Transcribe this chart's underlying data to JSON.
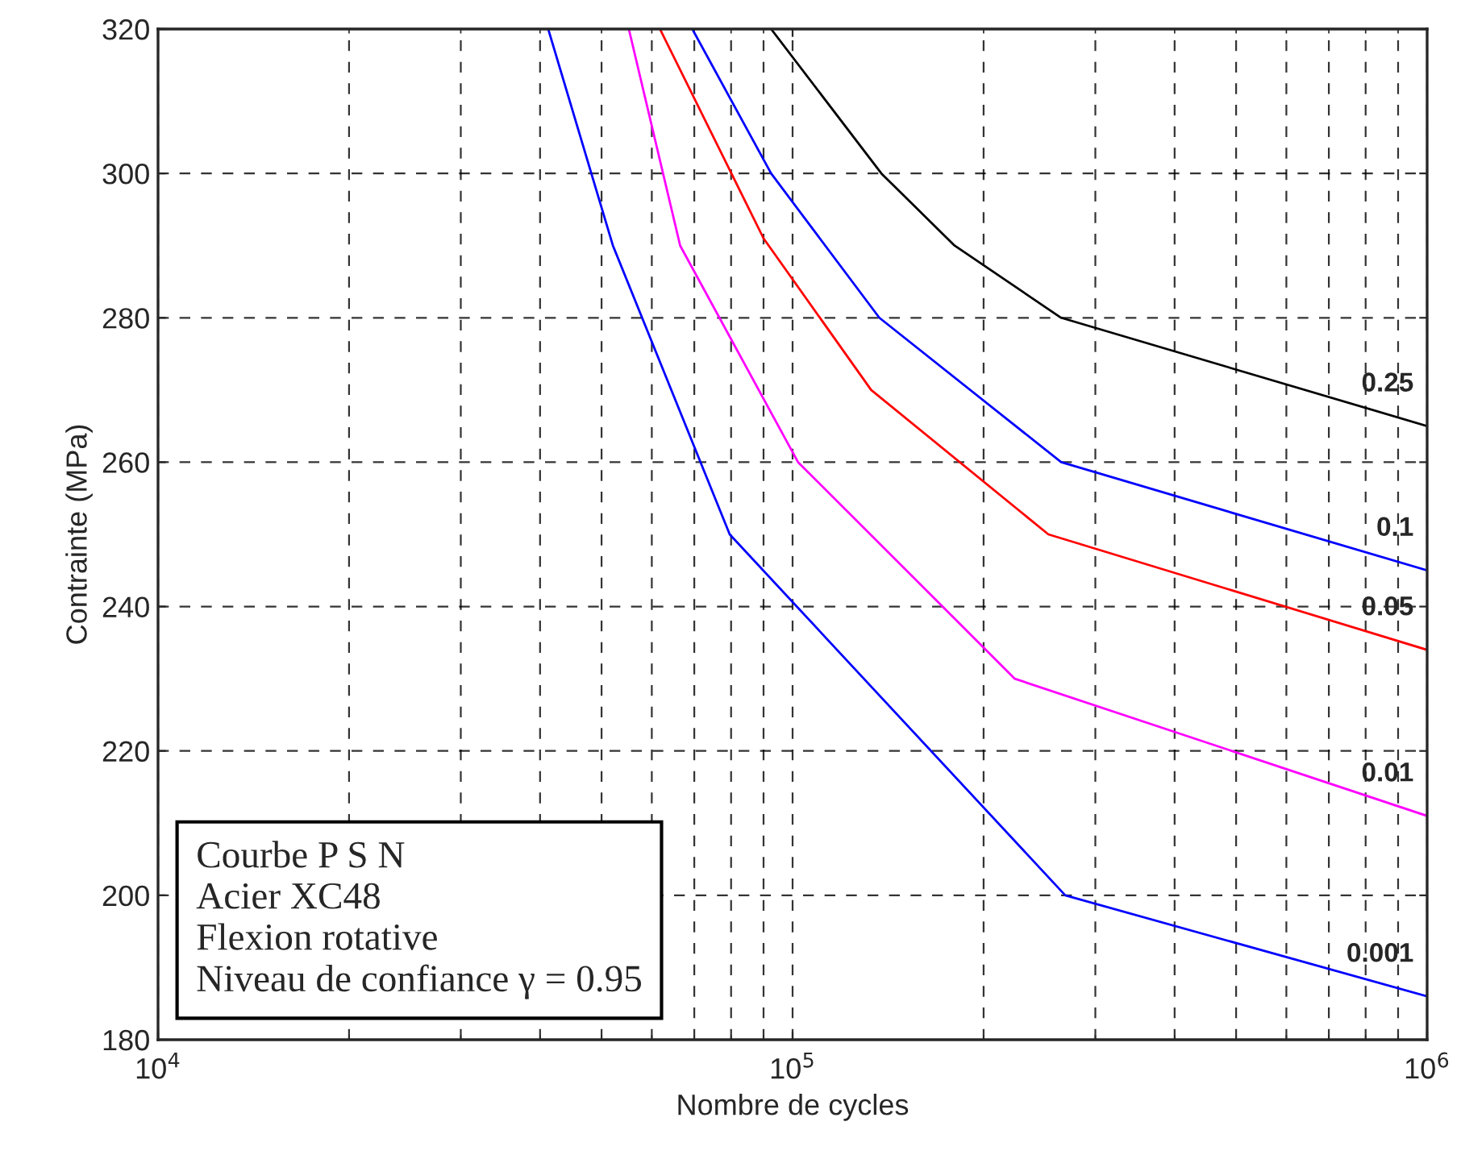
{
  "chart_data": {
    "type": "line",
    "xlabel": "Nombre de cycles",
    "ylabel": "Contrainte (MPa)",
    "log": "x",
    "grid": true,
    "xlim": [
      10000,
      1000000
    ],
    "ylim": [
      180,
      320
    ],
    "xticks": [
      {
        "value": 10000,
        "label": "10$^{4}$"
      },
      {
        "value": 100000,
        "label": "10$^{5}$"
      },
      {
        "value": 1000000,
        "label": "10$^{6}$"
      }
    ],
    "yticks": [
      180,
      200,
      220,
      240,
      260,
      280,
      300,
      320
    ],
    "series": [
      {
        "name": "0.25",
        "color": "#000000",
        "x": [
          92500,
          138000,
          180000,
          265000,
          1000000
        ],
        "values": [
          320,
          300,
          290,
          280,
          265
        ]
      },
      {
        "name": "0.1",
        "color": "#0000ff",
        "x": [
          69500,
          92500,
          137000,
          265000,
          1000000
        ],
        "values": [
          320,
          300,
          280,
          260,
          245
        ]
      },
      {
        "name": "0.05",
        "color": "#ff0000",
        "x": [
          61800,
          90000,
          133000,
          253000,
          1000000
        ],
        "values": [
          320,
          291,
          270,
          250,
          234
        ]
      },
      {
        "name": "0.01",
        "color": "#ff00ff",
        "x": [
          55200,
          66500,
          102000,
          224000,
          1000000
        ],
        "values": [
          320,
          290,
          260,
          230,
          211
        ]
      },
      {
        "name": "0.001",
        "color": "#0000ff",
        "x": [
          41200,
          52100,
          79600,
          269000,
          1000000
        ],
        "values": [
          320,
          290,
          250,
          200,
          186
        ]
      }
    ],
    "annotations": [
      "Courbe P S N",
      "Acier XC48",
      "Flexion rotative",
      "Niveau de confiance γ = 0.95"
    ]
  }
}
